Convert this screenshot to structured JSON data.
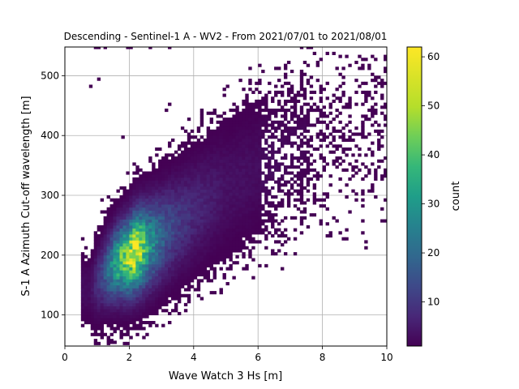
{
  "chart_data": {
    "type": "heatmap",
    "title": "Descending - Sentinel-1 A - WV2 - From 2021/07/01 to 2021/08/01",
    "xlabel": "Wave Watch 3 Hs [m]",
    "ylabel": "S-1 A Azimuth Cut-off wavelength [m]",
    "xlim": [
      0,
      10
    ],
    "ylim": [
      48,
      548
    ],
    "x_ticks": [
      "0",
      "2",
      "4",
      "6",
      "8",
      "10"
    ],
    "x_tick_values": [
      0,
      2,
      4,
      6,
      8,
      10
    ],
    "y_ticks": [
      "100",
      "200",
      "300",
      "400",
      "500"
    ],
    "y_tick_values": [
      100,
      200,
      300,
      400,
      500
    ],
    "grid": true,
    "colorbar": {
      "label": "count",
      "min": 1,
      "max": 62,
      "ticks": [
        "10",
        "20",
        "30",
        "40",
        "50",
        "60"
      ],
      "tick_values": [
        10,
        20,
        30,
        40,
        50,
        60
      ],
      "colormap": "viridis"
    },
    "density_ridge": {
      "description": "2D histogram; density ridge points (Hs, cut-off) with approximate counts",
      "x": [
        0.8,
        1.2,
        1.6,
        2.0,
        2.2,
        2.6,
        3.0,
        3.5,
        4.0,
        5.0,
        6.0,
        7.0,
        8.0
      ],
      "y": [
        140,
        165,
        185,
        195,
        205,
        215,
        230,
        250,
        270,
        310,
        340,
        370,
        400
      ],
      "peak_count": [
        3,
        15,
        38,
        55,
        62,
        35,
        20,
        12,
        8,
        4,
        3,
        2,
        1
      ]
    },
    "peak": {
      "x": 2.1,
      "y": 195,
      "count": 62
    }
  }
}
